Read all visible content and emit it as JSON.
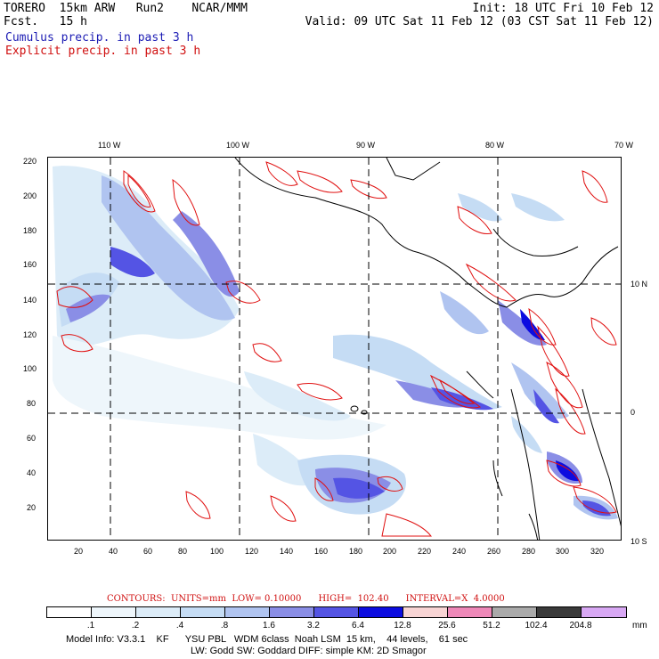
{
  "header": {
    "model": "TORERO  15km ARW   Run2    NCAR/MMM",
    "fcst": "Fcst.   15 h",
    "init": "Init: 18 UTC Fri 10 Feb 12",
    "valid": "Valid: 09 UTC Sat 11 Feb 12 (03 CST Sat 11 Feb 12)",
    "cumulus": "Cumulus precip. in past 3 h",
    "explicit": "Explicit precip. in past 3 h"
  },
  "map": {
    "lon_labels": [
      "110 W",
      "100 W",
      "90 W",
      "80 W",
      "70 W"
    ],
    "lat_labels": [
      "10 N",
      "0",
      "10 S"
    ],
    "y_ticks": [
      "220",
      "200",
      "180",
      "160",
      "140",
      "120",
      "100",
      "80",
      "60",
      "40",
      "20"
    ],
    "x_ticks": [
      "20",
      "40",
      "60",
      "80",
      "100",
      "120",
      "140",
      "160",
      "180",
      "200",
      "220",
      "240",
      "260",
      "280",
      "300",
      "320"
    ]
  },
  "legend": {
    "contours": "CONTOURS:  UNITS=mm  LOW= 0.10000      HIGH=  102.40      INTERVAL=X  4.0000",
    "unit": "mm",
    "levels": [
      ".1",
      ".2",
      ".4",
      ".8",
      "1.6",
      "3.2",
      "6.4",
      "12.8",
      "25.6",
      "51.2",
      "102.4",
      "204.8"
    ],
    "colors": [
      "#ffffff",
      "#eef6fb",
      "#dcecf8",
      "#c5dcf4",
      "#b0c4f0",
      "#8a8ee6",
      "#5454e4",
      "#0c0ce0",
      "#f8d4d4",
      "#ee88b8",
      "#aaaaaa",
      "#3a3a3a",
      "#d8a8f4"
    ]
  },
  "footer": {
    "line1": "Model Info: V3.3.1    KF      YSU PBL   WDM 6class  Noah LSM  15 km,    44 levels,    61 sec",
    "line2": "LW: Godd SW: Goddard DIFF: simple KM: 2D Smagor"
  }
}
